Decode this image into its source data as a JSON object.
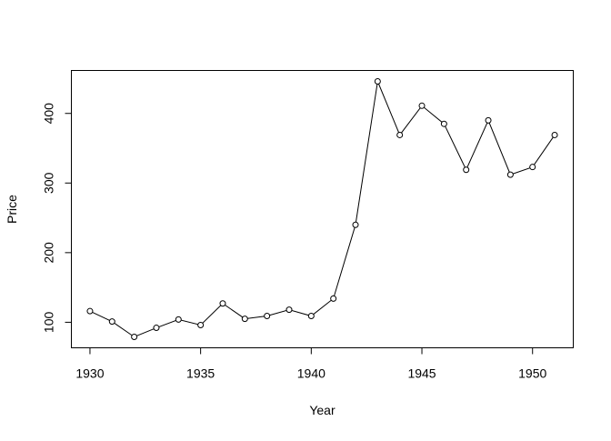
{
  "chart_data": {
    "type": "line",
    "title": "",
    "xlabel": "Year",
    "ylabel": "Price",
    "x": [
      1930,
      1931,
      1932,
      1933,
      1934,
      1935,
      1936,
      1937,
      1938,
      1939,
      1940,
      1941,
      1942,
      1943,
      1944,
      1945,
      1946,
      1947,
      1948,
      1949,
      1950,
      1951
    ],
    "series": [
      {
        "values": [
          116,
          101,
          79,
          92,
          104,
          96,
          127,
          105,
          109,
          118,
          109,
          134,
          240,
          446,
          369,
          411,
          385,
          319,
          390,
          312,
          323,
          369
        ]
      }
    ],
    "xlim": [
      1929.16,
      1951.84
    ],
    "ylim": [
      63.32,
      461.68
    ],
    "x_ticks": [
      1930,
      1935,
      1940,
      1945,
      1950
    ],
    "x_tick_labels": [
      "1930",
      "1935",
      "1940",
      "1945",
      "1950"
    ],
    "y_ticks": [
      100,
      200,
      300,
      400
    ],
    "y_tick_labels": [
      "100",
      "200",
      "300",
      "400"
    ],
    "grid": false,
    "legend": "none",
    "line_color": "#000000",
    "marker": "open-circle"
  }
}
